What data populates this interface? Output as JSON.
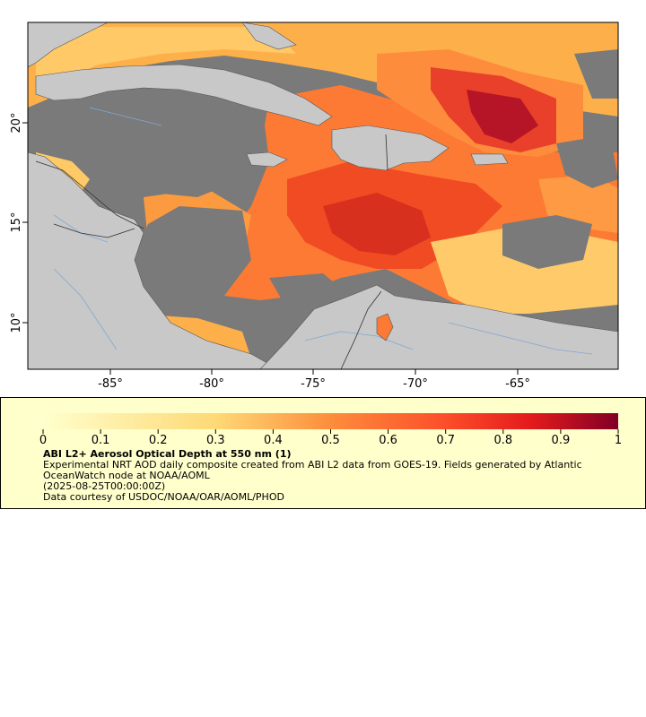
{
  "map": {
    "longitude_ticks": [
      "-85°",
      "-80°",
      "-75°",
      "-70°",
      "-65°"
    ],
    "latitude_ticks": [
      "20°",
      "15°",
      "10°"
    ],
    "colors": {
      "land": "#c8c8c8",
      "no_data": "#7a7a7a",
      "rivers": "#7fa9d4",
      "borders": "#555555",
      "aod_low": "#ffffcc",
      "aod_high": "#800026"
    }
  },
  "legend": {
    "colorbar_ticks": [
      "0",
      "0.1",
      "0.2",
      "0.3",
      "0.4",
      "0.5",
      "0.6",
      "0.7",
      "0.8",
      "0.9",
      "1"
    ],
    "colorbar_range": [
      0,
      1
    ],
    "title": "ABI L2+ Aerosol Optical Depth at 550 nm (1)",
    "description": "Experimental NRT AOD daily composite created from ABI L2 data from GOES-19. Fields generated by Atlantic OceanWatch node at NOAA/AOML",
    "time": "(2025-08-25T00:00:00Z)",
    "credit": "Data courtesy of USDOC/NOAA/OAR/AOML/PHOD"
  }
}
